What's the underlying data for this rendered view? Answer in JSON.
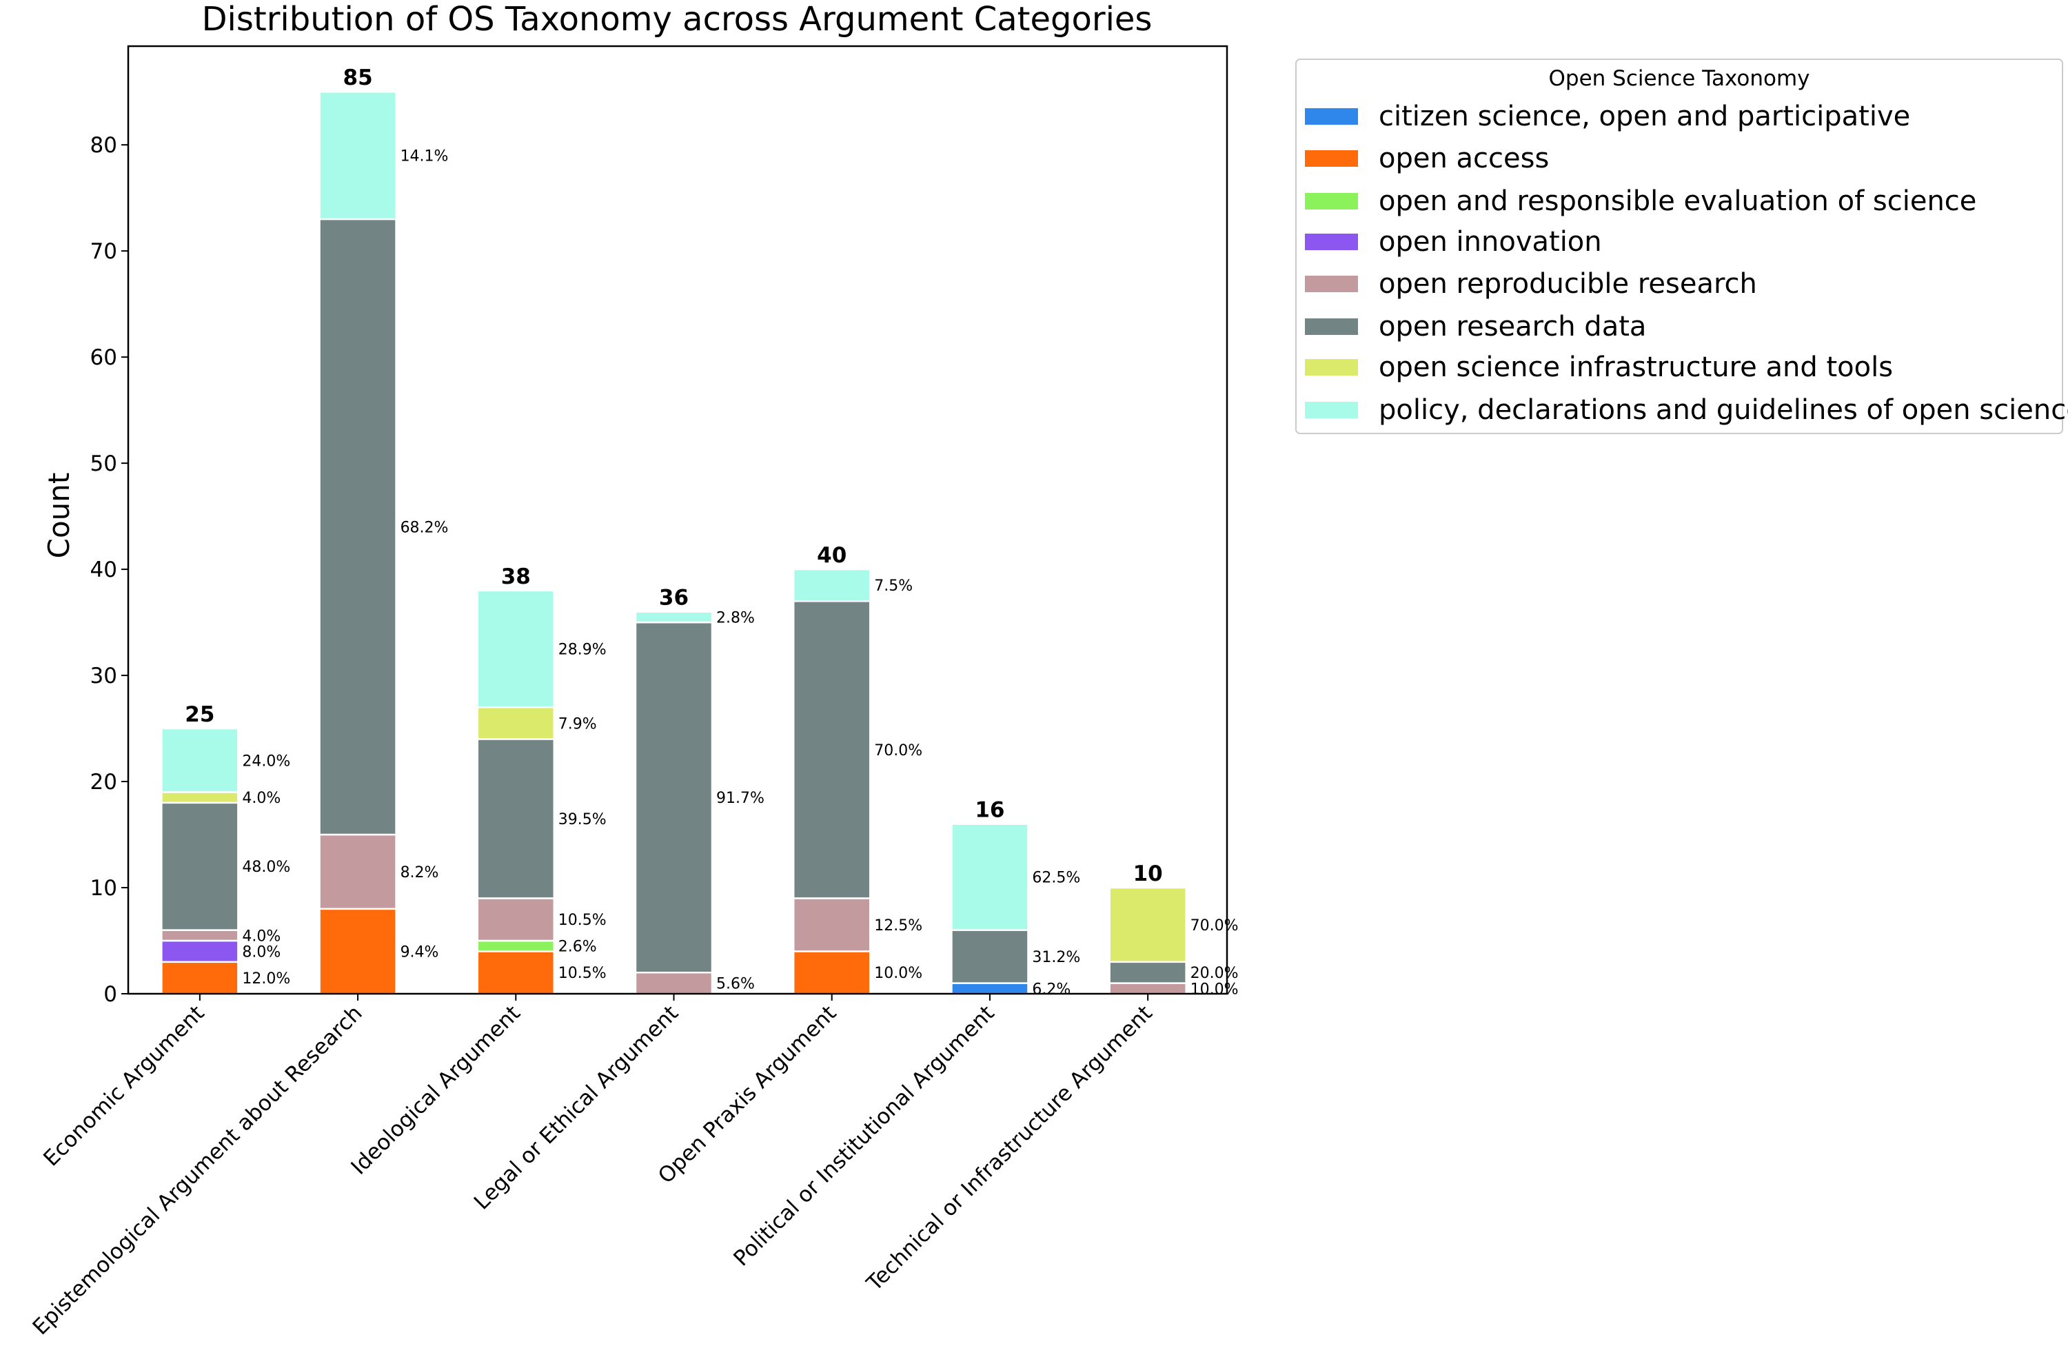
{
  "chart_data": {
    "type": "bar",
    "stacked": true,
    "title": "Distribution of OS Taxonomy across Argument Categories",
    "xlabel": "",
    "ylabel": "Count",
    "ylim": [
      0,
      89.3
    ],
    "yticks": [
      0,
      10,
      20,
      30,
      40,
      50,
      60,
      70,
      80
    ],
    "grid": false,
    "legend": {
      "title": "Open Science Taxonomy",
      "placement": "outside-top-right"
    },
    "categories": [
      "Economic Argument",
      "Epistemological Argument about Research",
      "Ideological Argument",
      "Legal or Ethical Argument",
      "Open Praxis Argument",
      "Political or Institutional Argument",
      "Technical or Infrastructure Argument"
    ],
    "totals": [
      25,
      85,
      38,
      36,
      40,
      16,
      10
    ],
    "series": [
      {
        "name": "citizen science, open and participative",
        "color": "#2f86eb",
        "values": [
          0,
          0,
          0,
          0,
          0,
          1,
          0
        ],
        "percent_labels": [
          "",
          "",
          "",
          "",
          "",
          "6.2%",
          ""
        ]
      },
      {
        "name": "open access",
        "color": "#ff6a0a",
        "values": [
          3,
          8,
          4,
          0,
          4,
          0,
          0
        ],
        "percent_labels": [
          "12.0%",
          "9.4%",
          "10.5%",
          "",
          "10.0%",
          "",
          ""
        ]
      },
      {
        "name": "open and responsible evaluation of science",
        "color": "#8cf25c",
        "values": [
          0,
          0,
          1,
          0,
          0,
          0,
          0
        ],
        "percent_labels": [
          "",
          "",
          "2.6%",
          "",
          "",
          "",
          ""
        ]
      },
      {
        "name": "open innovation",
        "color": "#8b57f0",
        "values": [
          2,
          0,
          0,
          0,
          0,
          0,
          0
        ],
        "percent_labels": [
          "8.0%",
          "",
          "",
          "",
          "",
          "",
          ""
        ]
      },
      {
        "name": "open reproducible research",
        "color": "#c39a9e",
        "values": [
          1,
          7,
          4,
          2,
          5,
          0,
          1
        ],
        "percent_labels": [
          "4.0%",
          "8.2%",
          "10.5%",
          "5.6%",
          "12.5%",
          "",
          "10.0%"
        ]
      },
      {
        "name": "open research data",
        "color": "#738484",
        "values": [
          12,
          58,
          15,
          33,
          28,
          5,
          2
        ],
        "percent_labels": [
          "48.0%",
          "68.2%",
          "39.5%",
          "91.7%",
          "70.0%",
          "31.2%",
          "20.0%"
        ]
      },
      {
        "name": "open science infrastructure and tools",
        "color": "#dcea6c",
        "values": [
          1,
          0,
          3,
          0,
          0,
          0,
          7
        ],
        "percent_labels": [
          "4.0%",
          "",
          "7.9%",
          "",
          "",
          "",
          "70.0%"
        ]
      },
      {
        "name": "policy, declarations and guidelines of open science",
        "color": "#a8fbe8",
        "values": [
          6,
          12,
          11,
          1,
          3,
          10,
          0
        ],
        "percent_labels": [
          "24.0%",
          "14.1%",
          "28.9%",
          "2.8%",
          "7.5%",
          "62.5%",
          ""
        ]
      }
    ]
  }
}
